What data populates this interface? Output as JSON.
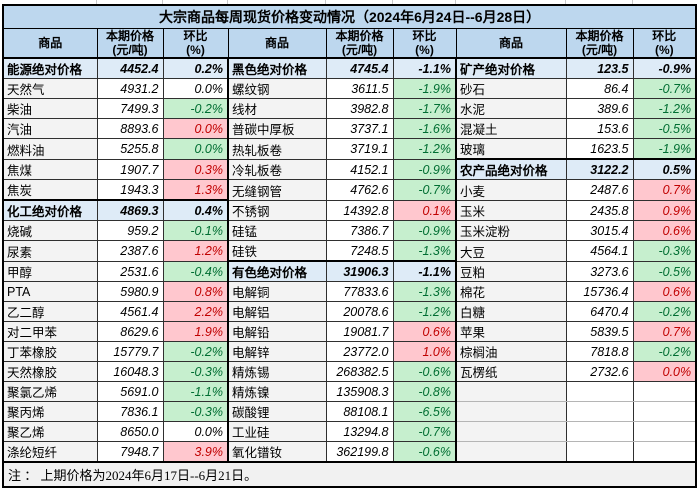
{
  "title": "大宗商品每周现货价格变动情况（2024年6月24日--6月28日）",
  "header": {
    "commodity": "商品",
    "price_line1": "本期价格",
    "price_line2": "(元/吨)",
    "pct_line1": "环比",
    "pct_line2": "(%)"
  },
  "note": "注 ： 上期价格为2024年6月17日--6月21日。",
  "colors": {
    "header_bg": "#BDD7EE",
    "summary_bg": "#DEEBF7",
    "name_bg": "#F3F3F3",
    "up_bg": "#FFC7CE",
    "up_text": "#C00000",
    "down_bg": "#C6EFCE",
    "down_text": "#006E32"
  },
  "table": {
    "row_count": 20,
    "groups": [
      {
        "rows": [
          {
            "kind": "summary",
            "name": "能源绝对价格",
            "price": "4452.4",
            "pct": "0.2%",
            "trend": "flat"
          },
          {
            "name": "天然气",
            "price": "4931.2",
            "pct": "0.0%",
            "trend": "flat"
          },
          {
            "name": "柴油",
            "price": "7499.3",
            "pct": "-0.2%",
            "trend": "down"
          },
          {
            "name": "汽油",
            "price": "8893.6",
            "pct": "0.0%",
            "trend": "up"
          },
          {
            "name": "燃料油",
            "price": "5255.8",
            "pct": "0.0%",
            "trend": "down"
          },
          {
            "name": "焦煤",
            "price": "1907.7",
            "pct": "0.3%",
            "trend": "up"
          },
          {
            "name": "焦炭",
            "price": "1943.3",
            "pct": "1.3%",
            "trend": "up"
          },
          {
            "kind": "summary",
            "name": "化工绝对价格",
            "price": "4869.3",
            "pct": "0.4%",
            "trend": "flat"
          },
          {
            "name": "烧碱",
            "price": "959.2",
            "pct": "-0.1%",
            "trend": "down"
          },
          {
            "name": "尿素",
            "price": "2387.6",
            "pct": "1.2%",
            "trend": "up"
          },
          {
            "name": "甲醇",
            "price": "2531.6",
            "pct": "-0.4%",
            "trend": "down"
          },
          {
            "name": "PTA",
            "price": "5980.9",
            "pct": "0.8%",
            "trend": "up"
          },
          {
            "name": "乙二醇",
            "price": "4561.4",
            "pct": "2.2%",
            "trend": "up"
          },
          {
            "name": "对二甲苯",
            "price": "8629.6",
            "pct": "1.9%",
            "trend": "up"
          },
          {
            "name": "丁苯橡胶",
            "price": "15779.7",
            "pct": "-0.2%",
            "trend": "down"
          },
          {
            "name": "天然橡胶",
            "price": "16048.3",
            "pct": "-0.3%",
            "trend": "down"
          },
          {
            "name": "聚氯乙烯",
            "price": "5691.0",
            "pct": "-1.1%",
            "trend": "down"
          },
          {
            "name": "聚丙烯",
            "price": "7836.1",
            "pct": "-0.3%",
            "trend": "down"
          },
          {
            "name": "聚乙烯",
            "price": "8650.0",
            "pct": "0.0%",
            "trend": "flat"
          },
          {
            "name": "涤纶短纤",
            "price": "7948.7",
            "pct": "3.9%",
            "trend": "up"
          }
        ]
      },
      {
        "rows": [
          {
            "kind": "summary",
            "name": "黑色绝对价格",
            "price": "4745.4",
            "pct": "-1.1%",
            "trend": "flat"
          },
          {
            "name": "螺纹钢",
            "price": "3611.5",
            "pct": "-1.9%",
            "trend": "down"
          },
          {
            "name": "线材",
            "price": "3982.8",
            "pct": "-1.7%",
            "trend": "down"
          },
          {
            "name": "普碳中厚板",
            "price": "3737.1",
            "pct": "-1.6%",
            "trend": "down"
          },
          {
            "name": "热轧板卷",
            "price": "3719.1",
            "pct": "-1.2%",
            "trend": "down"
          },
          {
            "name": "冷轧板卷",
            "price": "4152.1",
            "pct": "-0.9%",
            "trend": "down"
          },
          {
            "name": "无缝钢管",
            "price": "4762.6",
            "pct": "-0.7%",
            "trend": "down"
          },
          {
            "name": "不锈钢",
            "price": "14392.8",
            "pct": "0.1%",
            "trend": "up"
          },
          {
            "name": "硅锰",
            "price": "7386.7",
            "pct": "-0.9%",
            "trend": "down"
          },
          {
            "name": "硅铁",
            "price": "7248.5",
            "pct": "-1.3%",
            "trend": "down"
          },
          {
            "kind": "summary",
            "name": "有色绝对价格",
            "price": "31906.3",
            "pct": "-1.1%",
            "trend": "flat"
          },
          {
            "name": "电解铜",
            "price": "77833.6",
            "pct": "-1.3%",
            "trend": "down"
          },
          {
            "name": "电解铝",
            "price": "20078.6",
            "pct": "-1.2%",
            "trend": "down"
          },
          {
            "name": "电解铅",
            "price": "19081.7",
            "pct": "0.6%",
            "trend": "up"
          },
          {
            "name": "电解锌",
            "price": "23772.0",
            "pct": "1.0%",
            "trend": "up"
          },
          {
            "name": "精炼锡",
            "price": "268382.5",
            "pct": "-0.6%",
            "trend": "down"
          },
          {
            "name": "精炼镍",
            "price": "135908.3",
            "pct": "-0.8%",
            "trend": "down"
          },
          {
            "name": "碳酸锂",
            "price": "88108.1",
            "pct": "-6.5%",
            "trend": "down"
          },
          {
            "name": "工业硅",
            "price": "13294.8",
            "pct": "-0.7%",
            "trend": "down"
          },
          {
            "name": "氧化镨钕",
            "price": "362199.8",
            "pct": "-0.6%",
            "trend": "down"
          }
        ]
      },
      {
        "rows": [
          {
            "kind": "summary",
            "name": "矿产绝对价格",
            "price": "123.5",
            "pct": "-0.9%",
            "trend": "flat"
          },
          {
            "name": "砂石",
            "price": "86.4",
            "pct": "-0.7%",
            "trend": "down"
          },
          {
            "name": "水泥",
            "price": "389.6",
            "pct": "-1.2%",
            "trend": "down"
          },
          {
            "name": "混凝土",
            "price": "153.6",
            "pct": "-0.5%",
            "trend": "down"
          },
          {
            "name": "玻璃",
            "price": "1623.5",
            "pct": "-1.9%",
            "trend": "down"
          },
          {
            "kind": "summary",
            "name": "农产品绝对价格",
            "price": "3122.2",
            "pct": "0.5%",
            "trend": "flat"
          },
          {
            "name": "小麦",
            "price": "2487.6",
            "pct": "0.7%",
            "trend": "up"
          },
          {
            "name": "玉米",
            "price": "2435.8",
            "pct": "0.9%",
            "trend": "up"
          },
          {
            "name": "玉米淀粉",
            "price": "3015.4",
            "pct": "0.6%",
            "trend": "up"
          },
          {
            "name": "大豆",
            "price": "4564.1",
            "pct": "-0.3%",
            "trend": "down"
          },
          {
            "name": "豆粕",
            "price": "3273.6",
            "pct": "-0.5%",
            "trend": "down"
          },
          {
            "name": "棉花",
            "price": "15736.4",
            "pct": "0.6%",
            "trend": "up"
          },
          {
            "name": "白糖",
            "price": "6470.4",
            "pct": "-0.2%",
            "trend": "down"
          },
          {
            "name": "苹果",
            "price": "5839.5",
            "pct": "0.7%",
            "trend": "up"
          },
          {
            "name": "棕榈油",
            "price": "7818.8",
            "pct": "-0.2%",
            "trend": "down"
          },
          {
            "name": "瓦楞纸",
            "price": "2732.6",
            "pct": "0.0%",
            "trend": "up"
          },
          {
            "kind": "empty"
          },
          {
            "kind": "empty"
          },
          {
            "kind": "empty"
          },
          {
            "kind": "empty"
          }
        ]
      }
    ]
  }
}
